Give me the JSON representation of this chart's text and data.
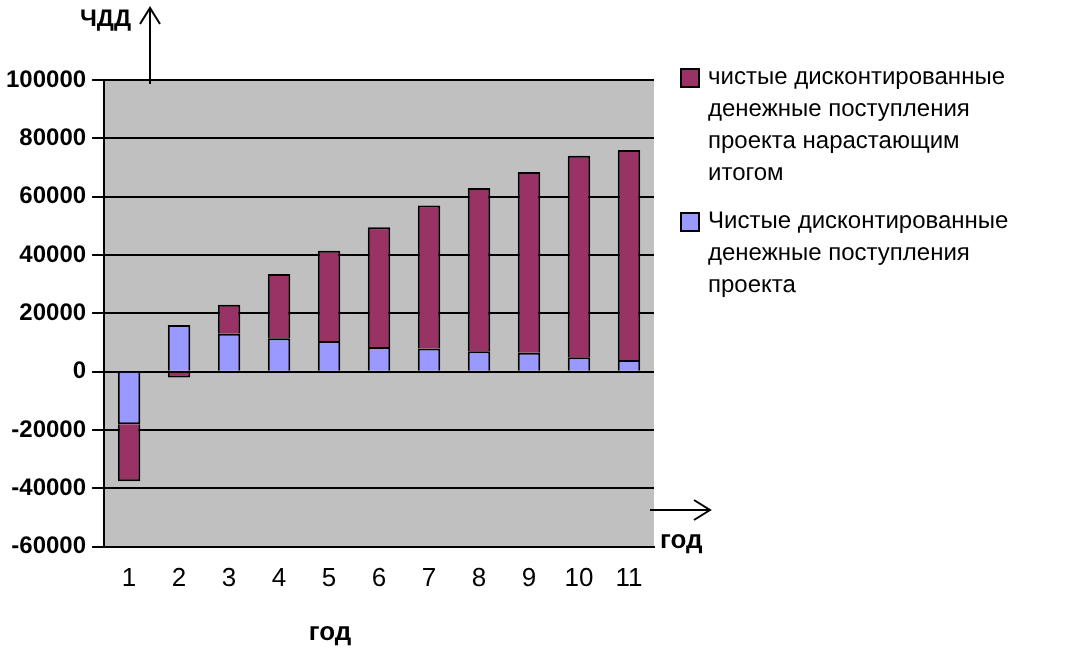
{
  "chart_data": {
    "type": "bar",
    "stacked": true,
    "ylabel": "ЧДД",
    "xlabel": "год",
    "annotations": [
      "год"
    ],
    "categories": [
      "1",
      "2",
      "3",
      "4",
      "5",
      "6",
      "7",
      "8",
      "9",
      "10",
      "11"
    ],
    "series": [
      {
        "name": "Чистые дисконтированные денежные поступления проекта",
        "color": "#9999ff",
        "values": [
          -18000,
          16000,
          13000,
          11500,
          10500,
          8500,
          8000,
          7000,
          6500,
          5000,
          4000
        ]
      },
      {
        "name": "чистые дисконтированные денежные поступления проекта нарастающим итогом",
        "color": "#993366",
        "values": [
          -19500,
          -2000,
          10000,
          22000,
          31000,
          41000,
          49000,
          56000,
          62000,
          69000,
          72000
        ]
      }
    ],
    "ylim": [
      -60000,
      100000
    ],
    "yticks": [
      -60000,
      -40000,
      -20000,
      0,
      20000,
      40000,
      60000,
      80000,
      100000
    ],
    "grid": "y",
    "legend": "right"
  }
}
